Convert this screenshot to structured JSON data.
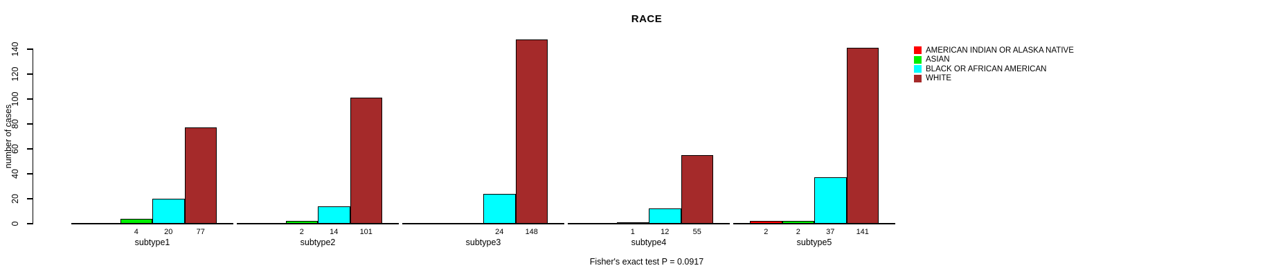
{
  "title": "RACE",
  "ylabel": "number of cases",
  "footer": "Fisher's exact test P = 0.0917",
  "legend": {
    "position": "right",
    "items": [
      {
        "label": "AMERICAN INDIAN OR ALASKA NATIVE",
        "color": "#FF0000"
      },
      {
        "label": "ASIAN",
        "color": "#00EE00"
      },
      {
        "label": "BLACK OR AFRICAN AMERICAN",
        "color": "#00FFFF"
      },
      {
        "label": "WHITE",
        "color": "#A52A2A"
      }
    ]
  },
  "chart_data": {
    "type": "bar",
    "title": "RACE",
    "xlabel": "",
    "ylabel": "number of cases",
    "ylim": [
      0,
      150
    ],
    "yticks": [
      0,
      20,
      40,
      60,
      80,
      100,
      120,
      140
    ],
    "grid": false,
    "legend_position": "right",
    "categories": [
      "subtype1",
      "subtype2",
      "subtype3",
      "subtype4",
      "subtype5"
    ],
    "series": [
      {
        "name": "AMERICAN INDIAN OR ALASKA NATIVE",
        "color": "#FF0000",
        "values": [
          0,
          0,
          0,
          0,
          2
        ]
      },
      {
        "name": "ASIAN",
        "color": "#00EE00",
        "values": [
          4,
          2,
          0,
          1,
          2
        ]
      },
      {
        "name": "BLACK OR AFRICAN AMERICAN",
        "color": "#00FFFF",
        "values": [
          20,
          14,
          24,
          12,
          37
        ]
      },
      {
        "name": "WHITE",
        "color": "#A52A2A",
        "values": [
          77,
          101,
          148,
          55,
          141
        ]
      }
    ],
    "bar_count_labels_shown_for_nonzero_only": true,
    "annotation": "Fisher's exact test P = 0.0917"
  }
}
